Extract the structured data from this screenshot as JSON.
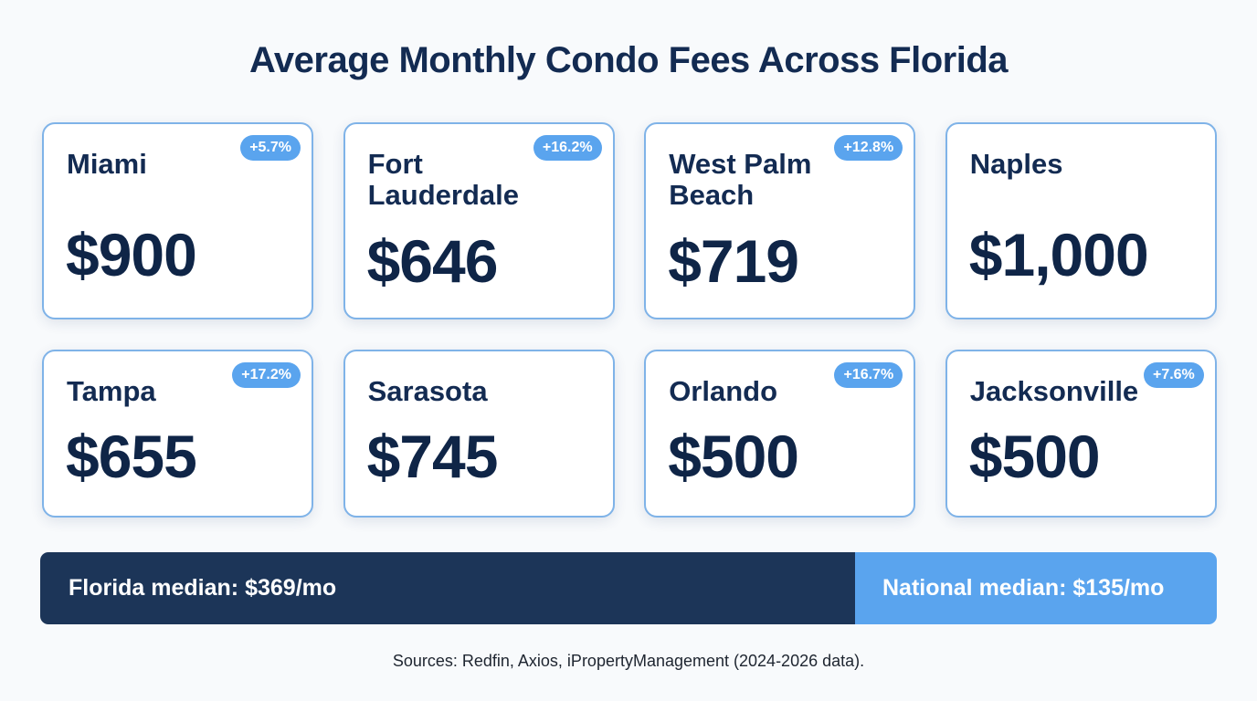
{
  "title": "Average Monthly Condo Fees Across Florida",
  "cards": [
    {
      "city": "Miami",
      "price": "$900",
      "change": "+5.7%"
    },
    {
      "city": "Fort Lauderdale",
      "price": "$646",
      "change": "+16.2%"
    },
    {
      "city": "West Palm Beach",
      "price": "$719",
      "change": "+12.8%"
    },
    {
      "city": "Naples",
      "price": "$1,000",
      "change": ""
    },
    {
      "city": "Tampa",
      "price": "$655",
      "change": "+17.2%"
    },
    {
      "city": "Sarasota",
      "price": "$745",
      "change": ""
    },
    {
      "city": "Orlando",
      "price": "$500",
      "change": "+16.7%"
    },
    {
      "city": "Jacksonville",
      "price": "$500",
      "change": "+7.6%"
    }
  ],
  "comparison": {
    "florida_label": "Florida median: $369/mo",
    "national_label": "National median: $135/mo"
  },
  "sources": "Sources: Redfin, Axios, iPropertyManagement (2024-2026 data).",
  "colors": {
    "navy": "#1c3558",
    "accent_blue": "#5aa4ee",
    "card_border": "#7fb3e8",
    "text_dark": "#0f2547"
  }
}
